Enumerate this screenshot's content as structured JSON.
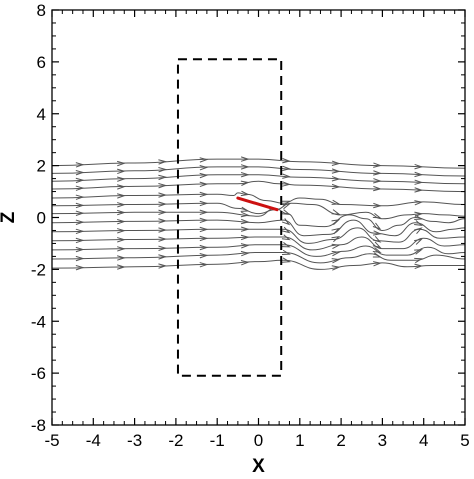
{
  "chart_data": {
    "type": "line",
    "title": "",
    "xlabel": "X",
    "ylabel": "Z",
    "xlim": [
      -5,
      5
    ],
    "ylim": [
      -8,
      8
    ],
    "x_ticks": [
      -5,
      -4,
      -3,
      -2,
      -1,
      0,
      1,
      2,
      3,
      4,
      5
    ],
    "x_tick_labels": [
      "-5",
      "-4",
      "-3",
      "-2",
      "-1",
      "0",
      "1",
      "2",
      "3",
      "4",
      "5"
    ],
    "y_ticks": [
      -8,
      -6,
      -4,
      -2,
      0,
      2,
      4,
      6,
      8
    ],
    "y_tick_labels": [
      "-8",
      "-6",
      "-4",
      "-2",
      "0",
      "2",
      "4",
      "6",
      "8"
    ],
    "grid": false,
    "legend": "none",
    "colors": {
      "streamline": "#555555",
      "arrow": "#cc1111",
      "box": "#000000"
    },
    "dashed_box": {
      "x": [
        -1.95,
        0.55
      ],
      "z": [
        -6.1,
        6.1
      ]
    },
    "arrow_segment": {
      "x": [
        -0.5,
        0.45
      ],
      "z": [
        0.75,
        0.3
      ]
    },
    "streamlines": [
      {
        "x": [
          -5,
          -3,
          -1,
          0,
          1,
          3,
          5
        ],
        "z": [
          2.0,
          2.1,
          2.25,
          2.25,
          2.15,
          2.0,
          1.9
        ]
      },
      {
        "x": [
          -5,
          -3,
          -1,
          0,
          1,
          3,
          5
        ],
        "z": [
          1.7,
          1.8,
          1.95,
          1.95,
          1.85,
          1.7,
          1.6
        ]
      },
      {
        "x": [
          -5,
          -3,
          -1,
          0,
          1,
          3,
          5
        ],
        "z": [
          1.4,
          1.5,
          1.65,
          1.65,
          1.55,
          1.4,
          1.3
        ]
      },
      {
        "x": [
          -5,
          -3,
          -1,
          -0.5,
          0,
          0.5,
          1,
          3,
          5
        ],
        "z": [
          1.1,
          1.2,
          1.3,
          1.3,
          1.4,
          1.3,
          1.25,
          1.1,
          1.0
        ]
      },
      {
        "x": [
          -5,
          -3,
          -1,
          -0.6,
          -0.5,
          -0.3,
          0.2,
          0.6,
          1,
          1.5,
          2,
          3,
          4,
          5
        ],
        "z": [
          0.75,
          0.85,
          0.9,
          0.85,
          0.95,
          0.9,
          0.65,
          0.55,
          0.75,
          0.7,
          0.5,
          0.45,
          0.6,
          0.5
        ]
      },
      {
        "x": [
          -5,
          -3,
          -1,
          -0.5,
          0,
          0.4,
          0.8,
          1.3,
          2,
          2.6,
          3,
          3.6,
          4,
          4.5,
          5
        ],
        "z": [
          0.45,
          0.5,
          0.55,
          0.35,
          0.15,
          0.3,
          0.55,
          0.5,
          0.1,
          0.2,
          -0.05,
          0.1,
          0.15,
          0.1,
          0.05
        ]
      },
      {
        "x": [
          -5,
          -3,
          -1,
          0,
          0.4,
          0.7,
          1,
          1.6,
          2.2,
          2.6,
          3,
          3.4,
          3.8,
          4.2,
          4.6,
          5
        ],
        "z": [
          0.15,
          0.2,
          0.2,
          0.05,
          0.35,
          0.15,
          -0.3,
          -0.35,
          0.1,
          -0.05,
          -0.5,
          -0.3,
          0.0,
          -0.15,
          -0.2,
          -0.05
        ]
      },
      {
        "x": [
          -5,
          -3,
          -1,
          0,
          0.6,
          1.1,
          1.7,
          2.3,
          2.8,
          3.3,
          3.8,
          4.3,
          4.7,
          5
        ],
        "z": [
          -0.2,
          -0.15,
          -0.1,
          -0.2,
          -0.1,
          -0.7,
          -0.65,
          -0.1,
          -0.6,
          -0.7,
          -0.2,
          -0.55,
          -0.45,
          -0.4
        ]
      },
      {
        "x": [
          -5,
          -3,
          -1,
          0,
          0.6,
          1.2,
          1.8,
          2.4,
          2.9,
          3.4,
          3.9,
          4.4,
          5
        ],
        "z": [
          -0.55,
          -0.5,
          -0.45,
          -0.45,
          -0.45,
          -1.0,
          -0.85,
          -0.4,
          -0.9,
          -0.95,
          -0.45,
          -0.8,
          -0.75
        ]
      },
      {
        "x": [
          -5,
          -3,
          -1,
          0,
          0.6,
          1.3,
          2,
          2.5,
          3,
          3.5,
          4,
          4.5,
          5
        ],
        "z": [
          -0.9,
          -0.85,
          -0.8,
          -0.75,
          -0.75,
          -1.25,
          -1.05,
          -0.75,
          -1.2,
          -1.2,
          -0.8,
          -1.1,
          -1.05
        ]
      },
      {
        "x": [
          -5,
          -3,
          -1,
          0,
          0.6,
          1.4,
          2.1,
          2.6,
          3.1,
          3.6,
          4.1,
          4.6,
          5
        ],
        "z": [
          -1.25,
          -1.2,
          -1.15,
          -1.05,
          -1.05,
          -1.5,
          -1.3,
          -1.1,
          -1.45,
          -1.45,
          -1.15,
          -1.4,
          -1.35
        ]
      },
      {
        "x": [
          -5,
          -3,
          -1,
          0,
          0.6,
          1.5,
          2.2,
          2.7,
          3.2,
          3.8,
          4.3,
          5
        ],
        "z": [
          -1.6,
          -1.55,
          -1.45,
          -1.35,
          -1.35,
          -1.75,
          -1.55,
          -1.4,
          -1.65,
          -1.65,
          -1.45,
          -1.6
        ]
      },
      {
        "x": [
          -5,
          -3,
          -1,
          0,
          0.6,
          1.5,
          2.3,
          3,
          3.6,
          4.2,
          5
        ],
        "z": [
          -1.95,
          -1.9,
          -1.8,
          -1.7,
          -1.65,
          -2.0,
          -1.85,
          -1.75,
          -1.9,
          -1.85,
          -1.85
        ]
      }
    ]
  }
}
